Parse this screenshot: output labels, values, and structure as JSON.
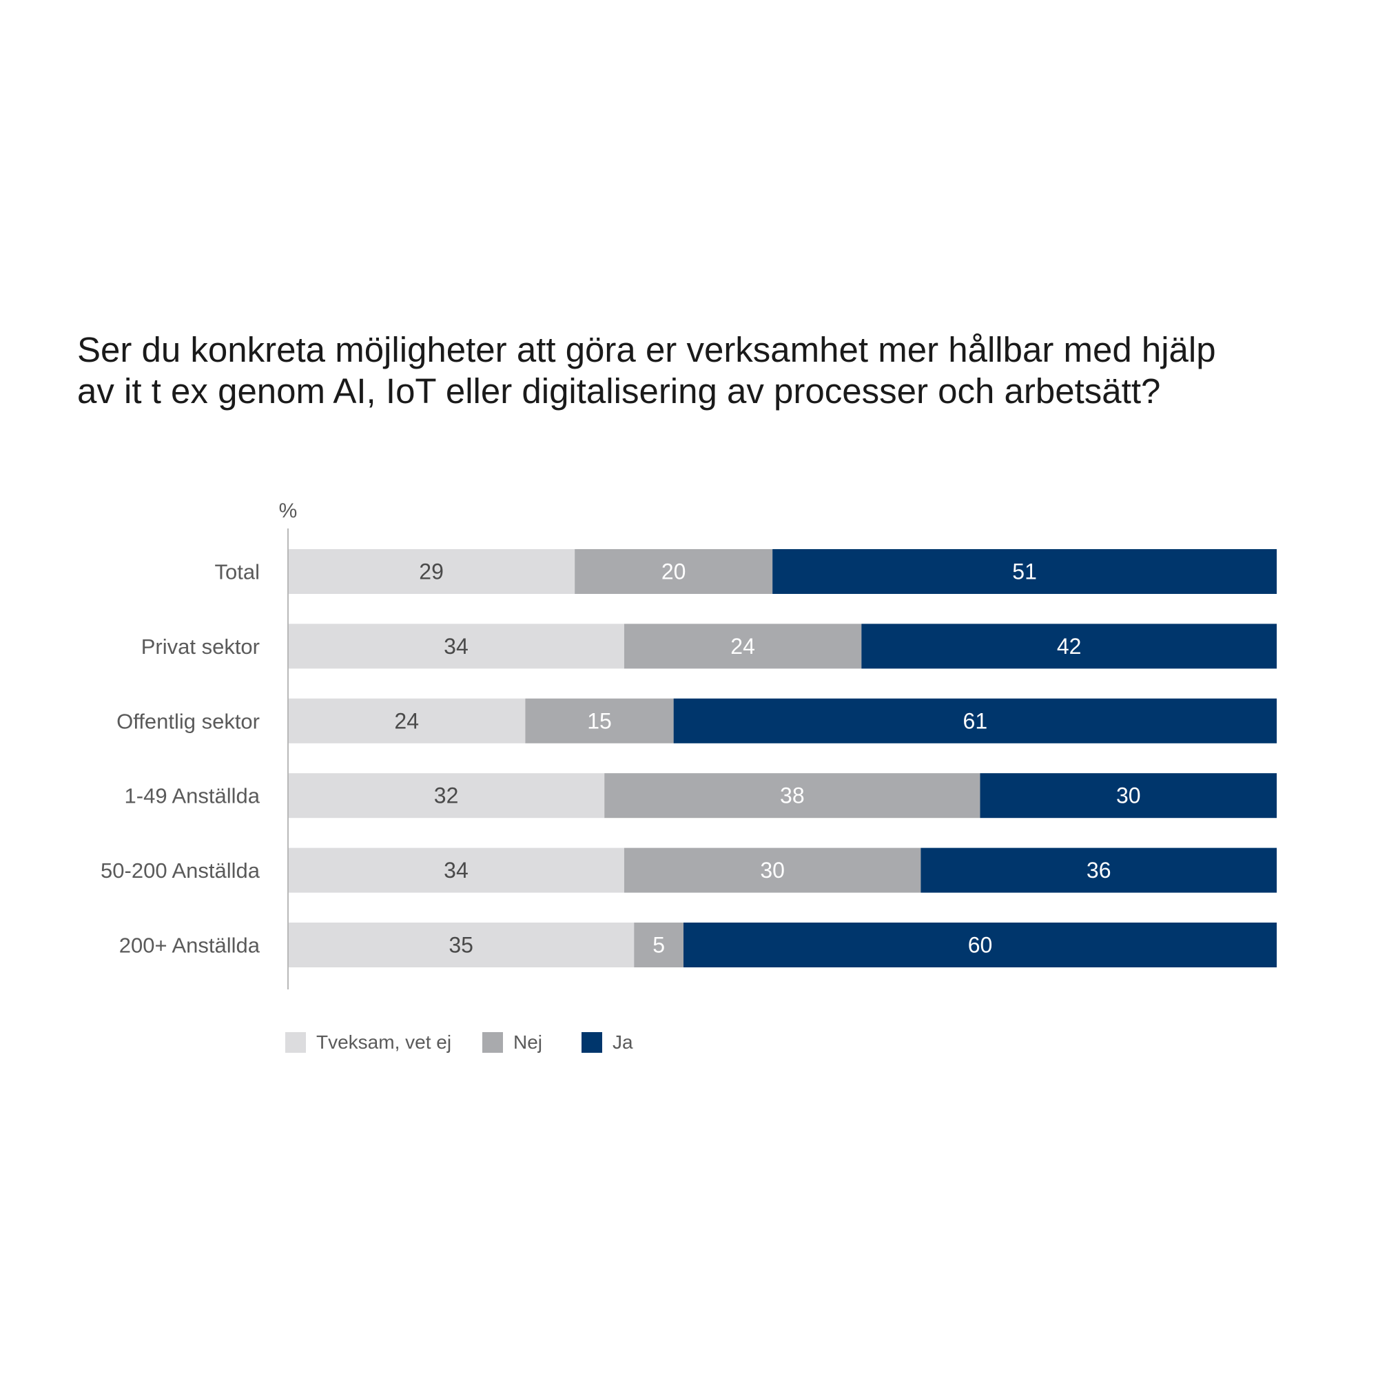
{
  "title_line1": "Ser du konkreta möjligheter att göra er verksamhet mer hållbar med hjälp",
  "title_line2": "av it t ex genom AI, IoT eller digitalisering av processer och arbetsätt?",
  "chart_data": {
    "type": "bar",
    "orientation": "horizontal",
    "stacked": true,
    "unit_label": "%",
    "categories": [
      "Total",
      "Privat sektor",
      "Offentlig sektor",
      "1-49 Anställda",
      "50-200 Anställda",
      "200+ Anställda"
    ],
    "series": [
      {
        "name": "Tveksam, vet ej",
        "color": "#dcdcde",
        "label_color": "#4a4a4a",
        "values": [
          29,
          34,
          24,
          32,
          34,
          35
        ]
      },
      {
        "name": "Nej",
        "color": "#a9aaad",
        "label_color": "#ffffff",
        "values": [
          20,
          24,
          15,
          38,
          30,
          5
        ]
      },
      {
        "name": "Ja",
        "color": "#00366c",
        "label_color": "#ffffff",
        "values": [
          51,
          42,
          61,
          30,
          36,
          60
        ]
      }
    ],
    "xlim": [
      0,
      100
    ],
    "grid": false,
    "legend_position": "bottom-left"
  }
}
